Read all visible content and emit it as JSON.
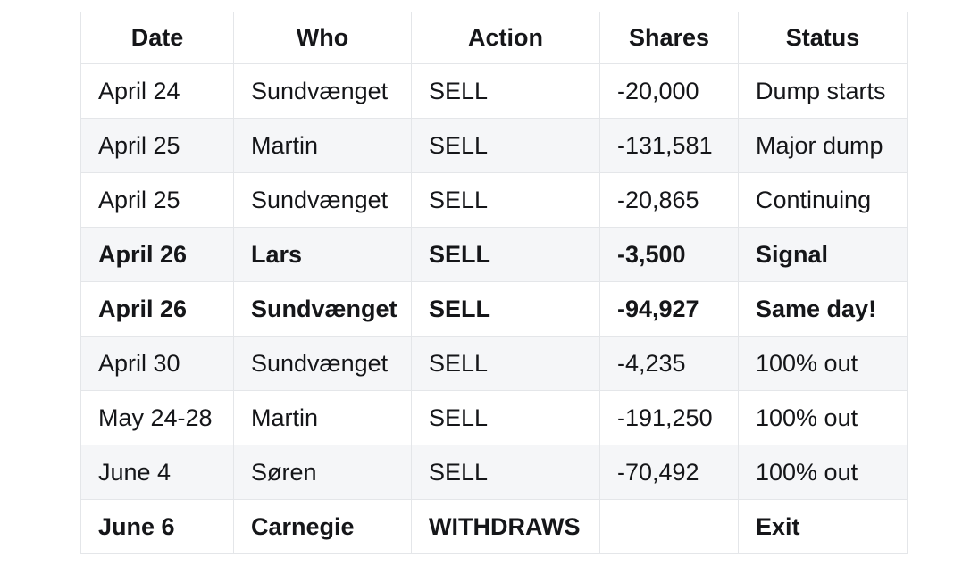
{
  "colors": {
    "background": "#ffffff",
    "stripe": "#f5f6f8",
    "border": "#e4e6e9",
    "text": "#151619"
  },
  "table": {
    "columns": [
      "Date",
      "Who",
      "Action",
      "Shares",
      "Status"
    ],
    "rows": [
      {
        "cells": [
          "April 24",
          "Sundvænget",
          "SELL",
          "-20,000",
          "Dump starts"
        ],
        "emphasis": false
      },
      {
        "cells": [
          "April 25",
          "Martin",
          "SELL",
          "-131,581",
          "Major dump"
        ],
        "emphasis": false
      },
      {
        "cells": [
          "April 25",
          "Sundvænget",
          "SELL",
          "-20,865",
          "Continuing"
        ],
        "emphasis": false
      },
      {
        "cells": [
          "April 26",
          "Lars",
          "SELL",
          "-3,500",
          "Signal"
        ],
        "emphasis": true
      },
      {
        "cells": [
          "April 26",
          "Sundvænget",
          "SELL",
          "-94,927",
          "Same day!"
        ],
        "emphasis": true
      },
      {
        "cells": [
          "April 30",
          "Sundvænget",
          "SELL",
          "-4,235",
          "100% out"
        ],
        "emphasis": false
      },
      {
        "cells": [
          "May 24-28",
          "Martin",
          "SELL",
          "-191,250",
          "100% out"
        ],
        "emphasis": false
      },
      {
        "cells": [
          "June 4",
          "Søren",
          "SELL",
          "-70,492",
          "100% out"
        ],
        "emphasis": false
      },
      {
        "cells": [
          "June 6",
          "Carnegie",
          "WITHDRAWS",
          "",
          "Exit"
        ],
        "emphasis": true
      }
    ]
  },
  "chart_data": {
    "type": "table",
    "title": "",
    "columns": [
      "Date",
      "Who",
      "Action",
      "Shares",
      "Status"
    ],
    "rows": [
      [
        "April 24",
        "Sundvænget",
        "SELL",
        "-20,000",
        "Dump starts"
      ],
      [
        "April 25",
        "Martin",
        "SELL",
        "-131,581",
        "Major dump"
      ],
      [
        "April 25",
        "Sundvænget",
        "SELL",
        "-20,865",
        "Continuing"
      ],
      [
        "April 26",
        "Lars",
        "SELL",
        "-3,500",
        "Signal"
      ],
      [
        "April 26",
        "Sundvænget",
        "SELL",
        "-94,927",
        "Same day!"
      ],
      [
        "April 30",
        "Sundvænget",
        "SELL",
        "-4,235",
        "100% out"
      ],
      [
        "May 24-28",
        "Martin",
        "SELL",
        "-191,250",
        "100% out"
      ],
      [
        "June 4",
        "Søren",
        "SELL",
        "-70,492",
        "100% out"
      ],
      [
        "June 6",
        "Carnegie",
        "WITHDRAWS",
        "",
        "Exit"
      ]
    ],
    "shares_values": [
      -20000,
      -131581,
      -20865,
      -3500,
      -94927,
      -4235,
      -191250,
      -70492,
      null
    ],
    "emphasized_row_indices": [
      3,
      4,
      8
    ],
    "layout_hints": {
      "striped_rows": "even data rows shaded",
      "header_align": "center",
      "cell_align": "left",
      "grid": "full cell borders"
    }
  }
}
